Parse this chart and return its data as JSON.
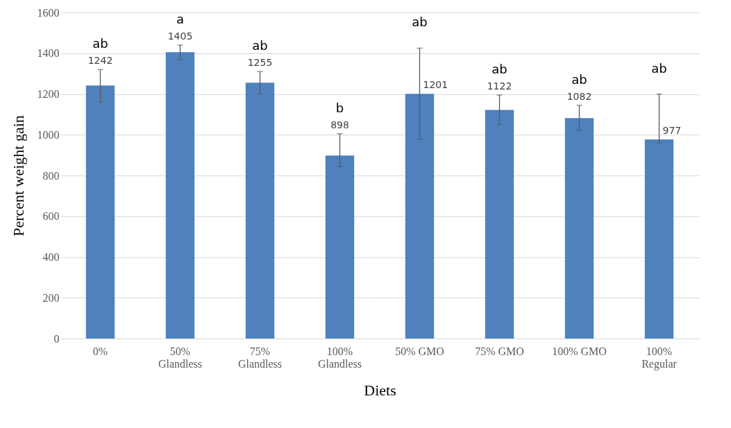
{
  "chart_data": {
    "type": "bar",
    "xlabel": "Diets",
    "ylabel": "Percent weight gain",
    "categories": [
      "0%",
      "50%\nGlandless",
      "75%\nGlandless",
      "100%\nGlandless",
      "50% GMO",
      "75% GMO",
      "100% GMO",
      "100%\nRegular"
    ],
    "values": [
      1242,
      1405,
      1255,
      898,
      1201,
      1122,
      1082,
      977
    ],
    "data_labels": true,
    "errors": [
      [
        1160,
        1320
      ],
      [
        1368,
        1440
      ],
      [
        1200,
        1310
      ],
      [
        843,
        1005
      ],
      [
        978,
        1425
      ],
      [
        1050,
        1195
      ],
      [
        1022,
        1145
      ],
      [
        960,
        1200
      ]
    ],
    "color": "#4f81bd",
    "ylim": [
      0,
      1600
    ],
    "yticks": [
      0,
      200,
      400,
      600,
      800,
      1000,
      1200,
      1400,
      1600
    ],
    "grid": "y",
    "annotations": [
      "ab",
      "a",
      "ab",
      "b",
      "ab",
      "ab",
      "ab",
      "ab"
    ]
  }
}
